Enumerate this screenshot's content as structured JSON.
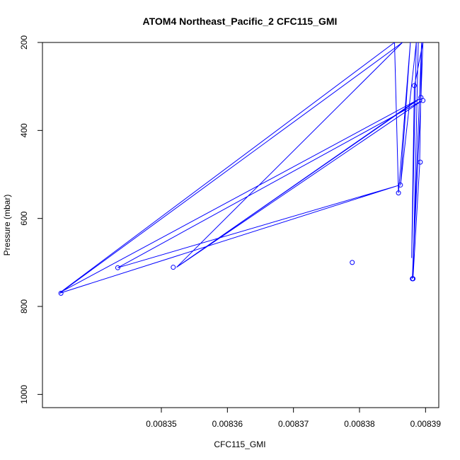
{
  "chart_data": {
    "type": "scatter",
    "title": "ATOM4 Northeast_Pacific_2 CFC115_GMI",
    "xlabel": "CFC115_GMI",
    "ylabel": "Pressure (mbar)",
    "xlim": [
      0.008332,
      0.008392
    ],
    "ylim": [
      1030,
      200
    ],
    "y_reversed": true,
    "xticks": [
      {
        "value": 0.00835,
        "label": "0.00835"
      },
      {
        "value": 0.00836,
        "label": "0.00836"
      },
      {
        "value": 0.00837,
        "label": "0.00837"
      },
      {
        "value": 0.00838,
        "label": "0.00838"
      },
      {
        "value": 0.00839,
        "label": "0.00839"
      }
    ],
    "yticks": [
      {
        "value": 200,
        "label": "200"
      },
      {
        "value": 400,
        "label": "400"
      },
      {
        "value": 600,
        "label": "600"
      },
      {
        "value": 800,
        "label": "800"
      },
      {
        "value": 1000,
        "label": "1000"
      }
    ],
    "color": "#0000ff",
    "series": [
      {
        "points": [
          {
            "x": 0.0083889,
            "y": 200
          },
          {
            "x": 0.0083881,
            "y": 735
          },
          {
            "x": 0.0083891,
            "y": 480
          },
          {
            "x": 0.0083894,
            "y": 200
          },
          {
            "x": 0.008388,
            "y": 737
          },
          {
            "x": 0.0083893,
            "y": 325
          },
          {
            "x": 0.0083896,
            "y": 200
          },
          {
            "x": 0.0083883,
            "y": 300
          },
          {
            "x": 0.0083879,
            "y": 690
          },
          {
            "x": 0.0083886,
            "y": 200
          },
          {
            "x": 0.0083862,
            "y": 525
          },
          {
            "x": 0.0083877,
            "y": 200
          },
          {
            "x": 0.0083859,
            "y": 542
          },
          {
            "x": 0.0083853,
            "y": 200
          },
          {
            "x": 0.0083347,
            "y": 768
          },
          {
            "x": 0.0083891,
            "y": 328
          },
          {
            "x": 0.0083524,
            "y": 710
          },
          {
            "x": 0.0083895,
            "y": 332
          },
          {
            "x": 0.0083434,
            "y": 712
          },
          {
            "x": 0.0083859,
            "y": 525
          },
          {
            "x": 0.0083346,
            "y": 770
          },
          {
            "x": 0.0083865,
            "y": 200
          },
          {
            "x": 0.0083523,
            "y": 711
          },
          {
            "x": 0.0083885,
            "y": 333
          }
        ],
        "markers": [
          {
            "x": 0.0083434,
            "y": 712
          },
          {
            "x": 0.0083348,
            "y": 770
          },
          {
            "x": 0.0083518,
            "y": 711
          },
          {
            "x": 0.0083789,
            "y": 700
          },
          {
            "x": 0.0083859,
            "y": 542
          },
          {
            "x": 0.0083862,
            "y": 524
          },
          {
            "x": 0.0083883,
            "y": 298
          },
          {
            "x": 0.0083893,
            "y": 325
          },
          {
            "x": 0.0083896,
            "y": 332
          },
          {
            "x": 0.0083892,
            "y": 472
          },
          {
            "x": 0.0083881,
            "y": 737
          },
          {
            "x": 0.008388,
            "y": 737
          }
        ]
      }
    ]
  }
}
